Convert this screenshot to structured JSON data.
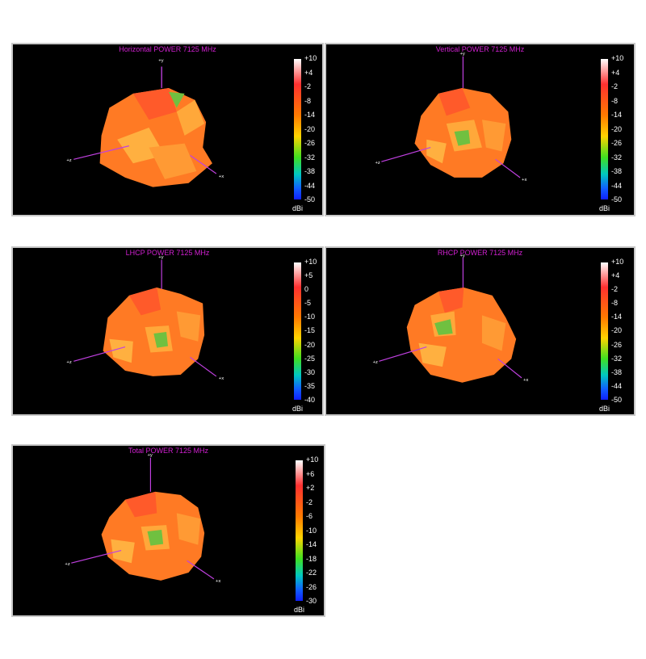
{
  "panels": [
    {
      "key": "p-h",
      "title": "Horizontal POWER 7125  MHz",
      "unit": "dBi",
      "scale": [
        "+10",
        "+4",
        "-2",
        "-8",
        "-14",
        "-20",
        "-26",
        "-32",
        "-38",
        "-44",
        "-50"
      ]
    },
    {
      "key": "p-v",
      "title": "Vertical POWER 7125  MHz",
      "unit": "dBi",
      "scale": [
        "+10",
        "+4",
        "-2",
        "-8",
        "-14",
        "-20",
        "-26",
        "-32",
        "-38",
        "-44",
        "-50"
      ]
    },
    {
      "key": "p-l",
      "title": "LHCP POWER 7125  MHz",
      "unit": "dBi",
      "scale": [
        "+10",
        "+5",
        "0",
        "-5",
        "-10",
        "-15",
        "-20",
        "-25",
        "-30",
        "-35",
        "-40"
      ]
    },
    {
      "key": "p-r",
      "title": "RHCP POWER 7125  MHz",
      "unit": "dBi",
      "scale": [
        "+10",
        "+4",
        "-2",
        "-8",
        "-14",
        "-20",
        "-26",
        "-32",
        "-38",
        "-44",
        "-50"
      ]
    },
    {
      "key": "p-t",
      "title": "Total POWER 7125  MHz",
      "unit": "dBi",
      "scale": [
        "+10",
        "+6",
        "+2",
        "-2",
        "-6",
        "-10",
        "-14",
        "-18",
        "-22",
        "-26",
        "-30"
      ]
    }
  ],
  "axes": {
    "x": "+x",
    "y": "+y",
    "z": "+z"
  },
  "colors": {
    "title": "#d020d0",
    "axis": "#c040e0",
    "pattern_main": "#ff8020",
    "pattern_hot": "#ff5020",
    "pattern_low": "#60d030"
  }
}
